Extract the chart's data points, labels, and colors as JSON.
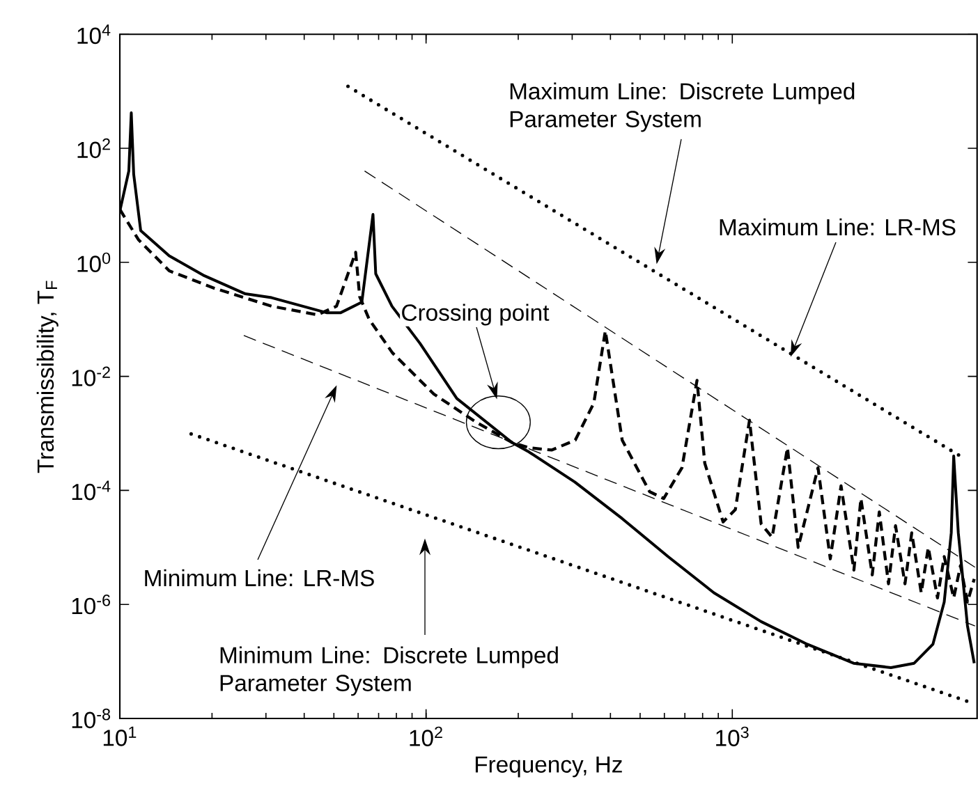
{
  "chart_data": {
    "type": "line",
    "xlabel": "Frequency, Hz",
    "ylabel": "Transmissibility, T$_{F}$",
    "log": "xy",
    "marker": "none",
    "xlim": [
      10,
      6300
    ],
    "ylim": [
      1e-08,
      10000
    ],
    "xticks": [
      {
        "value": 10,
        "label": "10$^{1}$"
      },
      {
        "value": 100,
        "label": "10$^{2}$"
      },
      {
        "value": 1000,
        "label": "10$^{3}$"
      }
    ],
    "yticks": [
      {
        "value": 1e-08,
        "label": "10$^{-8}$"
      },
      {
        "value": 1e-06,
        "label": "10$^{-6}$"
      },
      {
        "value": 0.0001,
        "label": "10$^{-4}$"
      },
      {
        "value": 0.01,
        "label": "10$^{-2}$"
      },
      {
        "value": 1,
        "label": "10$^{0}$"
      },
      {
        "value": 100,
        "label": "10$^{2}$"
      },
      {
        "value": 10000,
        "label": "10$^{4}$"
      }
    ],
    "series": [
      {
        "type": "line",
        "color": "#000000",
        "line_style": "solid",
        "x": [
          10,
          10.7,
          10.9,
          11.1,
          11.7,
          14.5,
          18.9,
          25.7,
          31.3,
          47.5,
          52.5,
          61.7,
          67.1,
          68.5,
          77.4,
          95.5,
          126,
          191,
          217,
          306,
          437,
          617,
          871,
          1242,
          1758,
          2489,
          3296,
          3926,
          4519,
          4920,
          5188,
          5284,
          5470,
          5861,
          6166
        ],
        "values": [
          7.9,
          40,
          420,
          35,
          3.6,
          1.3,
          0.58,
          0.28,
          0.24,
          0.13,
          0.13,
          0.2,
          6.9,
          0.63,
          0.17,
          0.038,
          0.0041,
          0.00069,
          0.00047,
          0.00014,
          3.2e-05,
          6.9e-06,
          1.6e-06,
          5e-07,
          2e-07,
          9.3e-08,
          7.8e-08,
          9.3e-08,
          2e-07,
          1.1e-06,
          1.8e-05,
          0.0004,
          1.8e-05,
          4.2e-07,
          9.3e-08
        ]
      },
      {
        "type": "line",
        "color": "#000000",
        "line_style": "dashed",
        "x": [
          10,
          11.5,
          14.5,
          20.4,
          31.3,
          44.2,
          51,
          58.9,
          60.7,
          65.2,
          77.6,
          106,
          145,
          191,
          217,
          257,
          307,
          353,
          385,
          437,
          537,
          597,
          685,
          767,
          813,
          933,
          1023,
          1138,
          1242,
          1349,
          1514,
          1641,
          1905,
          2089,
          2265,
          2495,
          2630,
          2864,
          3020,
          3236,
          3412,
          3664,
          3855,
          4140,
          4365,
          4677,
          4920,
          5284,
          5560,
          5861,
          6166
        ],
        "values": [
          8.5,
          2.5,
          0.71,
          0.35,
          0.17,
          0.12,
          0.17,
          1.5,
          0.25,
          0.1,
          0.026,
          0.0049,
          0.0016,
          0.00069,
          0.00056,
          0.00051,
          0.00076,
          0.0034,
          0.063,
          0.00076,
          9.5e-05,
          7.2e-05,
          0.00025,
          0.0085,
          0.0003,
          2.8e-05,
          4.6e-05,
          0.0017,
          2.6e-05,
          1.5e-05,
          0.00056,
          1e-05,
          0.00025,
          6.3e-06,
          0.00012,
          4e-06,
          7.2e-05,
          3.3e-06,
          4.2e-05,
          2.3e-06,
          2.4e-05,
          2.3e-06,
          1.8e-05,
          1.6e-06,
          1e-05,
          1.3e-06,
          6.9e-06,
          1.3e-06,
          4.8e-06,
          1.1e-06,
          2.8e-06
        ]
      },
      {
        "type": "line",
        "color": "#000000",
        "line_style": "dotted",
        "x": [
          55.6,
          5740
        ],
        "values": [
          1220,
          0.00036
        ]
      },
      {
        "type": "line",
        "color": "#000000",
        "line_style": "dashed",
        "x": [
          63,
          6200
        ],
        "values": [
          40,
          4.5e-06
        ]
      },
      {
        "type": "line",
        "color": "#000000",
        "line_style": "dashed",
        "x": [
          25.4,
          6200
        ],
        "values": [
          0.052,
          4.2e-07
        ]
      },
      {
        "type": "line",
        "color": "#000000",
        "line_style": "dotted",
        "x": [
          17.1,
          6200
        ],
        "values": [
          0.00098,
          1.8e-08
        ]
      }
    ],
    "annotations": [
      {
        "text": "Maximum Line: Discrete Lumped Parameter System",
        "x": 566,
        "y": 0.93
      },
      {
        "text": "Maximum Line: LR-MS",
        "x": 1550,
        "y": 0.022
      },
      "Crossing point",
      "Minimum Line: LR-MS",
      "Minimum Line: Discrete Lumped Parameter System"
    ]
  }
}
